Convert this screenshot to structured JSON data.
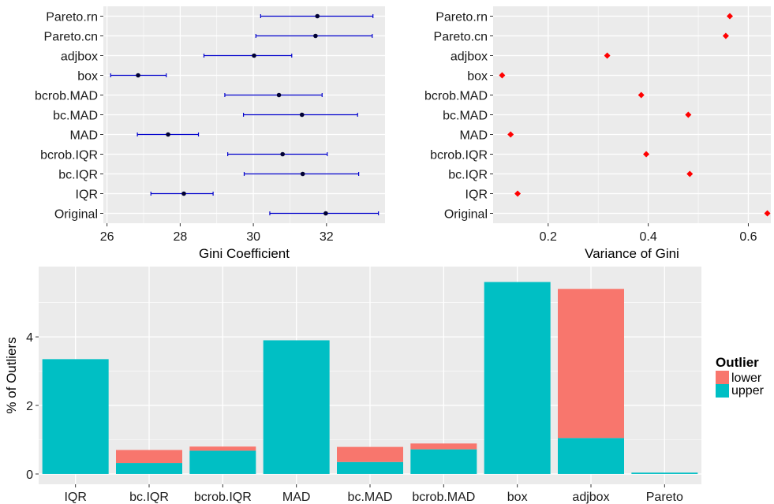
{
  "chart_data": [
    {
      "type": "scatter",
      "subtype": "point-with-error-bars",
      "xlabel": "Gini Coefficient",
      "ylabel": "",
      "xlim": [
        25.9,
        33.6
      ],
      "xticks": [
        26,
        28,
        30,
        32
      ],
      "grid": true,
      "colors": {
        "point": "#000033",
        "errorbar": "#0000cc",
        "panel": "#ebebeb"
      },
      "categories": [
        "Pareto.rn",
        "Pareto.cn",
        "adjbox",
        "box",
        "bcrob.MAD",
        "bc.MAD",
        "MAD",
        "bcrob.IQR",
        "bc.IQR",
        "IQR",
        "Original"
      ],
      "values": [
        31.75,
        31.7,
        30.02,
        26.85,
        30.7,
        31.33,
        27.67,
        30.8,
        31.35,
        28.1,
        31.98
      ],
      "lower": [
        30.2,
        30.07,
        28.65,
        26.1,
        29.22,
        29.73,
        26.83,
        29.3,
        29.75,
        27.2,
        30.45
      ],
      "upper": [
        33.27,
        33.25,
        31.05,
        27.62,
        31.88,
        32.85,
        28.5,
        32.02,
        32.88,
        28.9,
        33.42
      ]
    },
    {
      "type": "scatter",
      "xlabel": "Variance of Gini",
      "ylabel": "",
      "xlim": [
        0.09,
        0.645
      ],
      "xticks": [
        0.2,
        0.4,
        0.6
      ],
      "grid": true,
      "colors": {
        "point": "#ff0000",
        "panel": "#ebebeb"
      },
      "categories": [
        "Pareto.rn",
        "Pareto.cn",
        "adjbox",
        "box",
        "bcrob.MAD",
        "bc.MAD",
        "MAD",
        "bcrob.IQR",
        "bc.IQR",
        "IQR",
        "Original"
      ],
      "values": [
        0.563,
        0.555,
        0.318,
        0.108,
        0.386,
        0.48,
        0.125,
        0.396,
        0.483,
        0.139,
        0.638
      ]
    },
    {
      "type": "bar",
      "stacked": true,
      "xlabel": "",
      "ylabel": "% of Outliers",
      "ylim": [
        -0.3,
        6.05
      ],
      "yticks": [
        0,
        2,
        4
      ],
      "grid": true,
      "legend": {
        "title": "Outlier",
        "position": "right",
        "entries": [
          "lower",
          "upper"
        ]
      },
      "colors": {
        "lower": "#f8766d",
        "upper": "#00bfc4",
        "panel": "#ebebeb"
      },
      "categories": [
        "IQR",
        "bc.IQR",
        "bcrob.IQR",
        "MAD",
        "bc.MAD",
        "bcrob.MAD",
        "box",
        "adjbox",
        "Pareto"
      ],
      "series": [
        {
          "name": "upper",
          "values": [
            3.35,
            0.32,
            0.68,
            3.9,
            0.35,
            0.72,
            5.6,
            1.05,
            0.04
          ]
        },
        {
          "name": "lower",
          "values": [
            0,
            0.38,
            0.12,
            0,
            0.44,
            0.17,
            0,
            4.35,
            0
          ]
        }
      ]
    }
  ]
}
